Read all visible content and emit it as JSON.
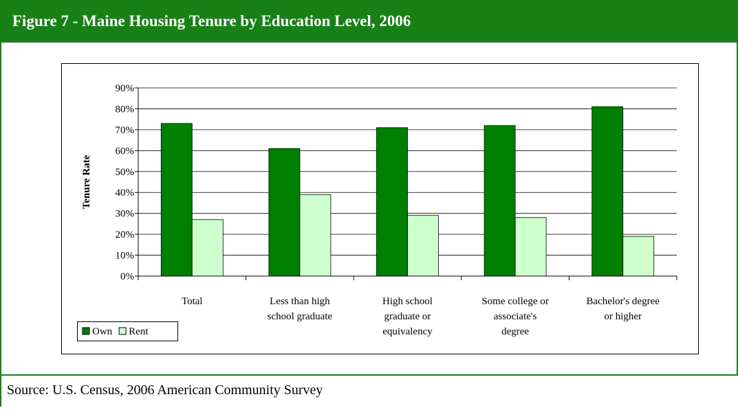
{
  "header": {
    "title": "Figure 7 -  Maine Housing Tenure by Education Level, 2006"
  },
  "chart_data": {
    "type": "bar",
    "y_axis_label": "Tenure Rate",
    "categories": [
      [
        "Total"
      ],
      [
        "Less than high",
        "school graduate"
      ],
      [
        "High school",
        "graduate or",
        "equivalency"
      ],
      [
        "Some college or",
        "associate's",
        "degree"
      ],
      [
        "Bachelor's degree",
        "or higher"
      ]
    ],
    "series": [
      {
        "name": "Own",
        "color": "#008000",
        "values": [
          73,
          61,
          71,
          72,
          81
        ]
      },
      {
        "name": "Rent",
        "color": "#ccffcc",
        "values": [
          27,
          39,
          29,
          28,
          19
        ]
      }
    ],
    "ylim": [
      0,
      90
    ],
    "yticks": [
      {
        "value": 0,
        "label": "0%"
      },
      {
        "value": 10,
        "label": "10%"
      },
      {
        "value": 20,
        "label": "20%"
      },
      {
        "value": 30,
        "label": "30%"
      },
      {
        "value": 40,
        "label": "40%"
      },
      {
        "value": 50,
        "label": "50%"
      },
      {
        "value": 60,
        "label": "60%"
      },
      {
        "value": 70,
        "label": "70%"
      },
      {
        "value": 80,
        "label": "80%"
      },
      {
        "value": 90,
        "label": "90%"
      }
    ],
    "grid": true,
    "legend": "bottom-left"
  },
  "footer": {
    "source": "Source: U.S. Census, 2006 American Community Survey"
  }
}
